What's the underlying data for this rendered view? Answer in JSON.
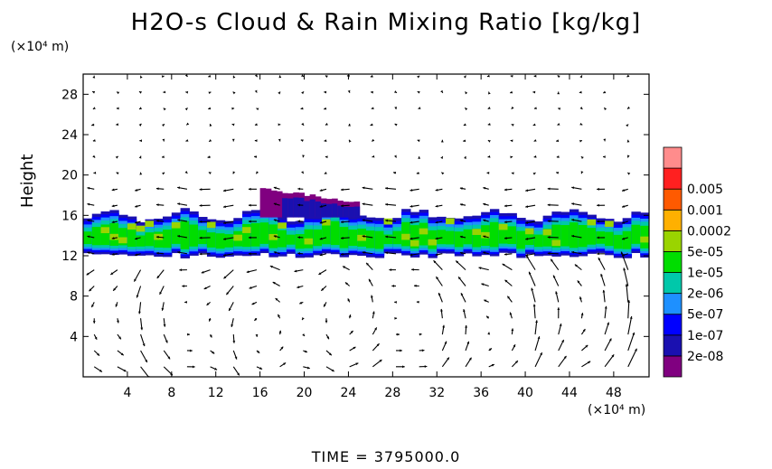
{
  "title": "H2O-s Cloud & Rain Mixing Ratio [kg/kg]",
  "y_unit_text": "(×10⁴ m)",
  "x_unit_text": "(×10⁴ m)",
  "ylabel": "Height",
  "time_text": "TIME = 3795000.0",
  "chart_data": {
    "type": "heatmap",
    "title": "H2O-s Cloud & Rain Mixing Ratio [kg/kg]",
    "ylabel": "Height",
    "xlabel": "",
    "x_unit": "(×10⁴ m)",
    "y_unit": "(×10⁴ m)",
    "xlim": [
      0,
      51.2
    ],
    "ylim": [
      0,
      30
    ],
    "x_ticks": [
      4,
      8,
      12,
      16,
      20,
      24,
      28,
      32,
      36,
      40,
      44,
      48
    ],
    "y_ticks": [
      4,
      8,
      12,
      16,
      20,
      24,
      28
    ],
    "colorbar": {
      "levels": [
        "2e-08",
        "1e-07",
        "5e-07",
        "2e-06",
        "1e-05",
        "5e-05",
        "0.0002",
        "0.001",
        "0.005"
      ],
      "colors": [
        "#800080",
        "#1a10b0",
        "#0000ff",
        "#1e90ff",
        "#00c8aa",
        "#00dd00",
        "#9ad400",
        "#ffb000",
        "#ff5a00",
        "#ff2020",
        "#ff8c8c"
      ]
    },
    "cloud_layer": {
      "base_height": 12,
      "top_height": 16,
      "anvil_x_range": [
        16,
        25
      ],
      "anvil_top": 18.5
    },
    "overlay": "wind vectors",
    "time": "3795000.0"
  },
  "colors": {
    "background": "#ffffff",
    "axis": "#000000",
    "arrow": "#000000"
  }
}
